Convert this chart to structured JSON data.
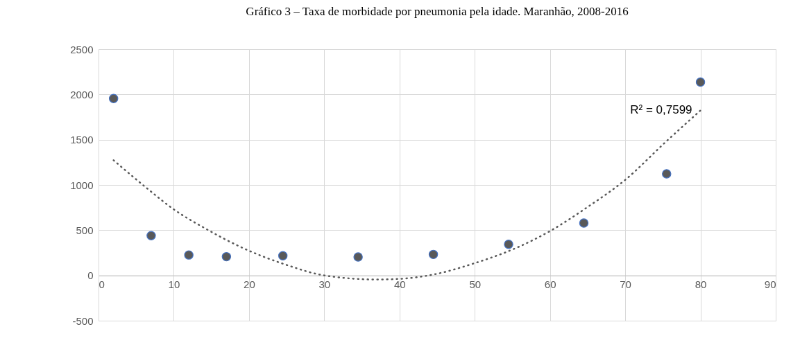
{
  "chart_data": {
    "type": "scatter",
    "title": "Gráfico 3 – Taxa de morbidade por pneumonia pela idade. Maranhão, 2008-2016",
    "x": [
      2,
      7,
      12,
      17,
      24.5,
      34.5,
      44.5,
      54.5,
      64.5,
      75.5,
      80
    ],
    "xlim": [
      0,
      90
    ],
    "xticks": [
      0,
      10,
      20,
      30,
      40,
      50,
      60,
      70,
      80,
      90
    ],
    "ylim": [
      -500,
      2500
    ],
    "yticks": [
      -500,
      0,
      500,
      1000,
      1500,
      2000,
      2500
    ],
    "grid": true,
    "annotations": [
      "R² = 0,7599"
    ],
    "series": [
      {
        "color": "#595959",
        "marker": "circle",
        "values": [
          1955,
          440,
          226,
          207,
          217,
          204,
          232,
          344,
          579,
          1123,
          2136
        ]
      },
      {
        "type": "line",
        "color": "#595959",
        "line_style": "dotted",
        "x": [
          2,
          6.6,
          10,
          14,
          19.4,
          25,
          30,
          37,
          40,
          44.5,
          50,
          55.9,
          60,
          65,
          70,
          75.3,
          80
        ],
        "values": [
          1273,
          952,
          730,
          528,
          295,
          116,
          0,
          -45,
          -38,
          10,
          136,
          318,
          490,
          756,
          1056,
          1469,
          1823
        ]
      }
    ]
  }
}
